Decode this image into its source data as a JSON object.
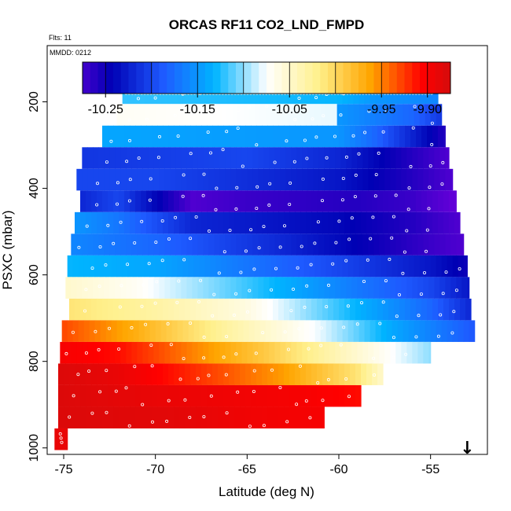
{
  "chart_data": {
    "type": "heatmap",
    "title": "ORCAS RF11 CO2_LND_FMPD",
    "subtitle_flights": "Flts: 11",
    "subtitle_date": "MMDD: 0212",
    "xlabel": "Latitude (deg N)",
    "ylabel": "PSXC (mbar)",
    "xlim": [
      -75.9,
      -51.9
    ],
    "ylim": [
      1015,
      70
    ],
    "x_ticks": [
      {
        "value": -75,
        "label": "-75"
      },
      {
        "value": -70,
        "label": "-70"
      },
      {
        "value": -65,
        "label": "-65"
      },
      {
        "value": -60,
        "label": "-60"
      },
      {
        "value": -55,
        "label": "-55"
      }
    ],
    "y_ticks": [
      {
        "value": 200,
        "label": "200"
      },
      {
        "value": 400,
        "label": "400"
      },
      {
        "value": 600,
        "label": "600"
      },
      {
        "value": 800,
        "label": "800"
      },
      {
        "value": 1000,
        "label": "1000"
      }
    ],
    "colorbar": {
      "range": [
        -10.3,
        -9.85
      ],
      "ticks": [
        {
          "value": -10.25,
          "label": "-10.25"
        },
        {
          "value": -10.15,
          "label": "-10.15"
        },
        {
          "value": -10.05,
          "label": "-10.05"
        },
        {
          "value": -9.95,
          "label": "-9.95"
        },
        {
          "value": -9.9,
          "label": "-9.90"
        }
      ],
      "boundaries": [
        -10.275,
        -10.25,
        -10.2,
        -10.15,
        -10.1,
        -10.05,
        -10.0,
        -9.95,
        -9.9,
        -9.875
      ],
      "colors": [
        "#7B00E0",
        "#0000B4",
        "#1E5AFF",
        "#00B4FF",
        "#FFFFFF",
        "#FFF08C",
        "#FFA500",
        "#FF0000",
        "#B41414"
      ]
    },
    "layers": [
      {
        "p": 180,
        "lat_min": -71.8,
        "lat_max": -54.6,
        "stops": [
          [
            -71.8,
            -10.12
          ],
          [
            -60,
            -10.13
          ],
          [
            -58,
            -10.15
          ],
          [
            -54.6,
            -10.16
          ]
        ]
      },
      {
        "p": 230,
        "lat_min": -72.1,
        "lat_max": -54.4,
        "stops": [
          [
            -72.1,
            -10.07
          ],
          [
            -60.1,
            -10.08
          ],
          [
            -60,
            -10.15
          ],
          [
            -56,
            -10.18
          ],
          [
            -54.4,
            -10.21
          ]
        ]
      },
      {
        "p": 280,
        "lat_min": -72.9,
        "lat_max": -54.2,
        "stops": [
          [
            -72.9,
            -10.14
          ],
          [
            -60,
            -10.15
          ],
          [
            -58,
            -10.18
          ],
          [
            -54.2,
            -10.26
          ]
        ]
      },
      {
        "p": 330,
        "lat_min": -74.0,
        "lat_max": -54.0,
        "stops": [
          [
            -74,
            -10.21
          ],
          [
            -65,
            -10.2
          ],
          [
            -60,
            -10.22
          ],
          [
            -57,
            -10.25
          ],
          [
            -54,
            -10.28
          ]
        ]
      },
      {
        "p": 380,
        "lat_min": -74.3,
        "lat_max": -53.8,
        "stops": [
          [
            -74.3,
            -10.2
          ],
          [
            -70,
            -10.2
          ],
          [
            -60,
            -10.23
          ],
          [
            -56,
            -10.26
          ],
          [
            -53.8,
            -10.28
          ]
        ]
      },
      {
        "p": 430,
        "lat_min": -74.1,
        "lat_max": -53.6,
        "stops": [
          [
            -74.1,
            -10.22
          ],
          [
            -72,
            -10.2
          ],
          [
            -69,
            -10.26
          ],
          [
            -68,
            -10.28
          ],
          [
            -65,
            -10.27
          ],
          [
            -59,
            -10.26
          ],
          [
            -56,
            -10.27
          ],
          [
            -53.6,
            -10.29
          ]
        ]
      },
      {
        "p": 480,
        "lat_min": -74.4,
        "lat_max": -53.4,
        "stops": [
          [
            -74.4,
            -10.15
          ],
          [
            -72,
            -10.17
          ],
          [
            -68,
            -10.22
          ],
          [
            -60,
            -10.24
          ],
          [
            -56,
            -10.26
          ],
          [
            -53.4,
            -10.28
          ]
        ]
      },
      {
        "p": 530,
        "lat_min": -74.6,
        "lat_max": -53.2,
        "stops": [
          [
            -74.6,
            -10.16
          ],
          [
            -70,
            -10.18
          ],
          [
            -63,
            -10.22
          ],
          [
            -58,
            -10.25
          ],
          [
            -55,
            -10.27
          ],
          [
            -53.2,
            -10.28
          ]
        ]
      },
      {
        "p": 580,
        "lat_min": -74.8,
        "lat_max": -53.0,
        "stops": [
          [
            -74.8,
            -10.13
          ],
          [
            -70,
            -10.14
          ],
          [
            -65,
            -10.17
          ],
          [
            -60,
            -10.2
          ],
          [
            -55,
            -10.23
          ],
          [
            -53,
            -10.25
          ]
        ]
      },
      {
        "p": 630,
        "lat_min": -74.9,
        "lat_max": -52.9,
        "stops": [
          [
            -74.9,
            -10.05
          ],
          [
            -71,
            -10.07
          ],
          [
            -66,
            -10.11
          ],
          [
            -60,
            -10.16
          ],
          [
            -55,
            -10.2
          ],
          [
            -52.9,
            -10.23
          ]
        ]
      },
      {
        "p": 680,
        "lat_min": -74.7,
        "lat_max": -52.8,
        "stops": [
          [
            -74.7,
            -10.01
          ],
          [
            -70,
            -10.03
          ],
          [
            -65,
            -10.06
          ],
          [
            -60,
            -10.12
          ],
          [
            -55,
            -10.18
          ],
          [
            -52.8,
            -10.22
          ]
        ]
      },
      {
        "p": 730,
        "lat_min": -75.1,
        "lat_max": -52.6,
        "stops": [
          [
            -75.1,
            -9.93
          ],
          [
            -71,
            -9.97
          ],
          [
            -66,
            -10.03
          ],
          [
            -61,
            -10.08
          ],
          [
            -57,
            -10.14
          ],
          [
            -52.6,
            -10.19
          ]
        ]
      },
      {
        "p": 780,
        "lat_min": -75.2,
        "lat_max": -55.0,
        "stops": [
          [
            -75.2,
            -9.9
          ],
          [
            -72,
            -9.91
          ],
          [
            -68,
            -9.95
          ],
          [
            -64,
            -9.99
          ],
          [
            -60,
            -10.04
          ],
          [
            -55,
            -10.1
          ]
        ]
      },
      {
        "p": 830,
        "lat_min": -75.3,
        "lat_max": -57.6,
        "stops": [
          [
            -75.3,
            -9.88
          ],
          [
            -72,
            -9.89
          ],
          [
            -68,
            -9.92
          ],
          [
            -63,
            -9.96
          ],
          [
            -59,
            -10.01
          ],
          [
            -57.6,
            -10.05
          ]
        ]
      },
      {
        "p": 880,
        "lat_min": -75.3,
        "lat_max": -58.8,
        "stops": [
          [
            -75.3,
            -9.88
          ],
          [
            -70,
            -9.89
          ],
          [
            -62,
            -9.9
          ],
          [
            -58.8,
            -9.91
          ]
        ]
      },
      {
        "p": 930,
        "lat_min": -75.3,
        "lat_max": -60.8,
        "stops": [
          [
            -75.3,
            -9.88
          ],
          [
            -69,
            -9.885
          ],
          [
            -65,
            -9.895
          ],
          [
            -60.8,
            -9.9
          ]
        ]
      },
      {
        "p": 980,
        "lat_min": -75.5,
        "lat_max": -74.8,
        "stops": [
          [
            -75.5,
            -9.89
          ],
          [
            -74.8,
            -9.89
          ]
        ]
      }
    ],
    "marker": {
      "lat": -53.0,
      "symbol": "↓"
    }
  }
}
